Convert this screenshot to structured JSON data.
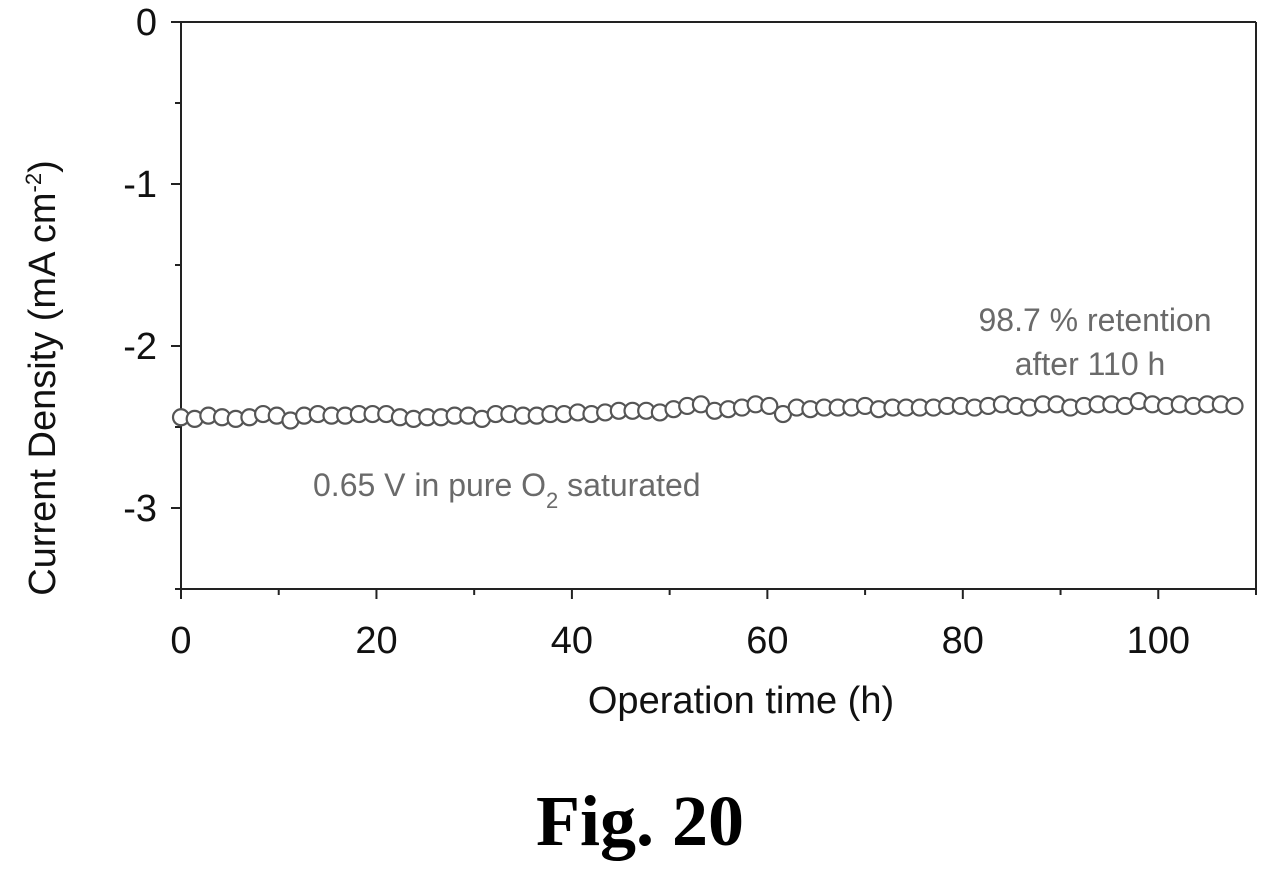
{
  "figure_caption": "Fig. 20",
  "chart_data": {
    "type": "scatter",
    "xlabel": "Operation time (h)",
    "ylabel": "Current Density (mA cm",
    "ylabel_sup": "-2",
    "ylabel_close": ")",
    "xlim": [
      0,
      110
    ],
    "ylim": [
      -3.5,
      0
    ],
    "xticks": [
      0,
      20,
      40,
      60,
      80,
      100
    ],
    "xtick_labels": [
      "0",
      "20",
      "40",
      "60",
      "80",
      "100"
    ],
    "yticks": [
      0,
      -1,
      -2,
      -3
    ],
    "ytick_labels": [
      "0",
      "-1",
      "-2",
      "-3"
    ],
    "grid": false,
    "annotations": [
      {
        "id": "retention",
        "lines": [
          "98.7 % retention",
          "after 110 h"
        ]
      },
      {
        "id": "condition",
        "prefix": "0.65 V in pure O",
        "sub": "2",
        "suffix": " saturated"
      }
    ],
    "series": [
      {
        "marker": "open-circle",
        "color": "#555555",
        "x": [
          0,
          1.4,
          2.8,
          4.2,
          5.6,
          7,
          8.4,
          9.8,
          11.2,
          12.6,
          14,
          15.4,
          16.8,
          18.2,
          19.6,
          21,
          22.4,
          23.8,
          25.2,
          26.6,
          28,
          29.4,
          30.8,
          32.2,
          33.6,
          35,
          36.4,
          37.8,
          39.2,
          40.6,
          42,
          43.4,
          44.8,
          46.2,
          47.6,
          49,
          50.4,
          51.8,
          53.2,
          54.6,
          56,
          57.4,
          58.8,
          60.2,
          61.6,
          63,
          64.4,
          65.8,
          67.2,
          68.6,
          70,
          71.4,
          72.8,
          74.2,
          75.6,
          77,
          78.4,
          79.8,
          81.2,
          82.6,
          84,
          85.4,
          86.8,
          88.2,
          89.6,
          91,
          92.4,
          93.8,
          95.2,
          96.6,
          98,
          99.4,
          100.8,
          102.2,
          103.6,
          105,
          106.4,
          107.8
        ],
        "y": [
          -2.44,
          -2.45,
          -2.43,
          -2.44,
          -2.45,
          -2.44,
          -2.42,
          -2.43,
          -2.46,
          -2.43,
          -2.42,
          -2.43,
          -2.43,
          -2.42,
          -2.42,
          -2.42,
          -2.44,
          -2.45,
          -2.44,
          -2.44,
          -2.43,
          -2.43,
          -2.45,
          -2.42,
          -2.42,
          -2.43,
          -2.43,
          -2.42,
          -2.42,
          -2.41,
          -2.42,
          -2.41,
          -2.4,
          -2.4,
          -2.4,
          -2.41,
          -2.39,
          -2.37,
          -2.36,
          -2.4,
          -2.39,
          -2.38,
          -2.36,
          -2.37,
          -2.42,
          -2.38,
          -2.39,
          -2.38,
          -2.38,
          -2.38,
          -2.37,
          -2.39,
          -2.38,
          -2.38,
          -2.38,
          -2.38,
          -2.37,
          -2.37,
          -2.38,
          -2.37,
          -2.36,
          -2.37,
          -2.38,
          -2.36,
          -2.36,
          -2.38,
          -2.37,
          -2.36,
          -2.36,
          -2.37,
          -2.34,
          -2.36,
          -2.37,
          -2.36,
          -2.37,
          -2.36,
          -2.36,
          -2.37
        ]
      }
    ]
  }
}
